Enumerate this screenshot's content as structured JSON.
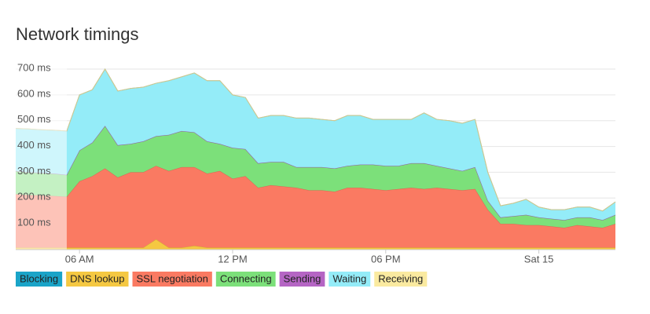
{
  "chart_data": {
    "type": "area",
    "stacked": true,
    "title": "Network timings",
    "categories": [
      null,
      null,
      null,
      null,
      null,
      "06 AM",
      null,
      null,
      null,
      null,
      null,
      null,
      null,
      null,
      null,
      null,
      null,
      "12 PM",
      null,
      null,
      null,
      null,
      null,
      null,
      null,
      null,
      null,
      null,
      null,
      "06 PM",
      null,
      null,
      null,
      null,
      null,
      null,
      null,
      null,
      null,
      null,
      null,
      "Sat 15",
      null,
      null,
      null,
      null,
      null,
      null
    ],
    "ylim": [
      0,
      700
    ],
    "yticks": [
      {
        "value": 100,
        "label": "100 ms"
      },
      {
        "value": 200,
        "label": "200 ms"
      },
      {
        "value": 300,
        "label": "300 ms"
      },
      {
        "value": 400,
        "label": "400 ms"
      },
      {
        "value": 500,
        "label": "500 ms"
      },
      {
        "value": 600,
        "label": "600 ms"
      },
      {
        "value": 700,
        "label": "700 ms"
      }
    ],
    "grid": true,
    "series": [
      {
        "name": "Blocking",
        "color": "#1aa4c8",
        "values": [
          0,
          0,
          0,
          0,
          0,
          0,
          0,
          0,
          0,
          0,
          0,
          0,
          0,
          0,
          0,
          0,
          0,
          0,
          0,
          0,
          0,
          0,
          0,
          0,
          0,
          0,
          0,
          0,
          0,
          0,
          0,
          0,
          0,
          0,
          0,
          0,
          0,
          0,
          0,
          0,
          0,
          0,
          0,
          0,
          0,
          0,
          0,
          0
        ]
      },
      {
        "name": "DNS lookup",
        "color": "#f5c842",
        "values": [
          8,
          8,
          8,
          8,
          8,
          8,
          8,
          8,
          8,
          8,
          8,
          40,
          8,
          8,
          15,
          8,
          8,
          8,
          8,
          8,
          8,
          8,
          8,
          8,
          8,
          8,
          8,
          8,
          8,
          8,
          8,
          8,
          8,
          8,
          8,
          8,
          8,
          8,
          8,
          8,
          8,
          8,
          8,
          8,
          8,
          8,
          8,
          8
        ]
      },
      {
        "name": "SSL negotiation",
        "color": "#fa7a62",
        "values": [
          207,
          204,
          202,
          200,
          197,
          257,
          277,
          307,
          272,
          292,
          292,
          285,
          297,
          312,
          305,
          287,
          297,
          267,
          277,
          232,
          242,
          237,
          232,
          222,
          222,
          217,
          232,
          232,
          227,
          222,
          227,
          232,
          227,
          232,
          227,
          222,
          227,
          147,
          92,
          92,
          87,
          87,
          82,
          77,
          87,
          82,
          77,
          92
        ]
      },
      {
        "name": "Connecting",
        "color": "#7ce07a",
        "values": [
          90,
          88,
          88,
          87,
          85,
          120,
          130,
          165,
          125,
          110,
          120,
          115,
          140,
          140,
          135,
          125,
          105,
          120,
          105,
          95,
          90,
          95,
          80,
          90,
          90,
          90,
          85,
          90,
          95,
          95,
          90,
          95,
          100,
          85,
          80,
          75,
          85,
          35,
          25,
          30,
          40,
          30,
          30,
          30,
          30,
          35,
          30,
          35
        ]
      },
      {
        "name": "Sending",
        "color": "#b565c4",
        "values": [
          0,
          0,
          0,
          0,
          0,
          0,
          0,
          0,
          0,
          0,
          0,
          0,
          0,
          0,
          0,
          0,
          0,
          0,
          0,
          0,
          0,
          0,
          0,
          0,
          0,
          0,
          0,
          0,
          0,
          0,
          0,
          0,
          0,
          0,
          0,
          0,
          0,
          0,
          0,
          0,
          0,
          0,
          0,
          0,
          0,
          0,
          0,
          0
        ]
      },
      {
        "name": "Waiting",
        "color": "#94ecf8",
        "values": [
          165,
          168,
          167,
          168,
          170,
          215,
          205,
          220,
          210,
          215,
          210,
          205,
          210,
          210,
          230,
          235,
          245,
          205,
          200,
          175,
          180,
          180,
          190,
          190,
          185,
          185,
          195,
          190,
          175,
          180,
          180,
          170,
          195,
          180,
          185,
          185,
          185,
          110,
          45,
          50,
          60,
          40,
          35,
          40,
          40,
          40,
          35,
          50
        ]
      },
      {
        "name": "Receiving",
        "color": "#faeaa0",
        "values": [
          0,
          0,
          0,
          0,
          0,
          0,
          0,
          0,
          0,
          0,
          0,
          0,
          0,
          0,
          0,
          0,
          0,
          0,
          0,
          0,
          0,
          0,
          0,
          0,
          0,
          0,
          0,
          0,
          0,
          0,
          0,
          0,
          0,
          0,
          0,
          0,
          0,
          0,
          0,
          0,
          0,
          0,
          0,
          0,
          0,
          0,
          0,
          0
        ]
      }
    ]
  }
}
